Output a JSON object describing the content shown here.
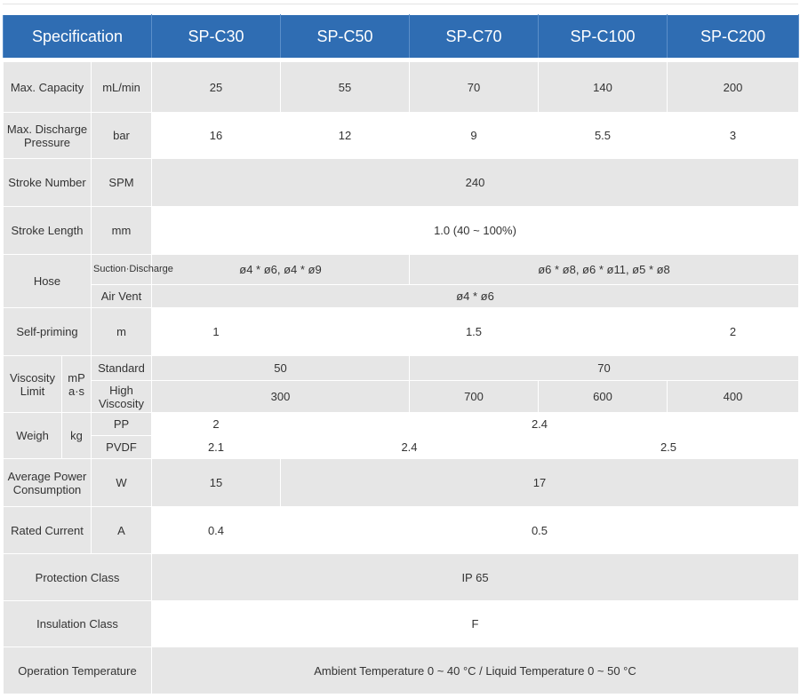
{
  "header": [
    "Specification",
    "SP-C30",
    "SP-C50",
    "SP-C70",
    "SP-C100",
    "SP-C200"
  ],
  "rows": {
    "capacity": {
      "label": "Max. Capacity",
      "unit": "mL/min",
      "values": [
        "25",
        "55",
        "70",
        "140",
        "200"
      ]
    },
    "pressure": {
      "label": "Max. Discharge Pressure",
      "unit": "bar",
      "values": [
        "16",
        "12",
        "9",
        "5.5",
        "3"
      ]
    },
    "stroke_number": {
      "label": "Stroke Number",
      "unit": "SPM",
      "value": "240"
    },
    "stroke_length": {
      "label": "Stroke Length",
      "unit": "mm",
      "value": "1.0 (40 ~ 100%)"
    },
    "hose": {
      "label": "Hose",
      "suction_label": "Suction·Discharge",
      "suction_a": "ø4 * ø6,   ø4 * ø9",
      "suction_b": "ø6 * ø8,     ø6 * ø11,     ø5 * ø8",
      "vent_label": "Air Vent",
      "vent_value": "ø4 * ø6"
    },
    "self_priming": {
      "label": "Self-priming",
      "unit": "m",
      "values": [
        "1",
        "1.5",
        "2"
      ]
    },
    "viscosity": {
      "label": "Viscosity Limit",
      "unit": "mP a·s",
      "standard_label": "Standard",
      "standard_values": [
        "50",
        "70"
      ],
      "high_label": "High Viscosity",
      "high_values": [
        "300",
        "700",
        "600",
        "400"
      ]
    },
    "weight": {
      "label": "Weigh",
      "unit": "kg",
      "pp_label": "PP",
      "pp_values": [
        "2",
        "2.4"
      ],
      "pvdf_label": "PVDF",
      "pvdf_values": [
        "2.1",
        "2.4",
        "2.5"
      ]
    },
    "power": {
      "label": "Average Power Consumption",
      "unit": "W",
      "values": [
        "15",
        "17"
      ]
    },
    "current": {
      "label": "Rated Current",
      "unit": "A",
      "values": [
        "0.4",
        "0.5"
      ]
    },
    "protection": {
      "label": "Protection Class",
      "value": "IP 65"
    },
    "insulation": {
      "label": "Insulation Class",
      "value": "F"
    },
    "temperature": {
      "label": "Operation Temperature",
      "value": "Ambient Temperature 0 ~ 40 °C  /  Liquid Temperature 0 ~ 50 °C"
    }
  },
  "colors": {
    "header_bg": "#2f6db3",
    "label_bg": "#e6e6e6",
    "row_alt_bg": "#e6e6e6"
  }
}
